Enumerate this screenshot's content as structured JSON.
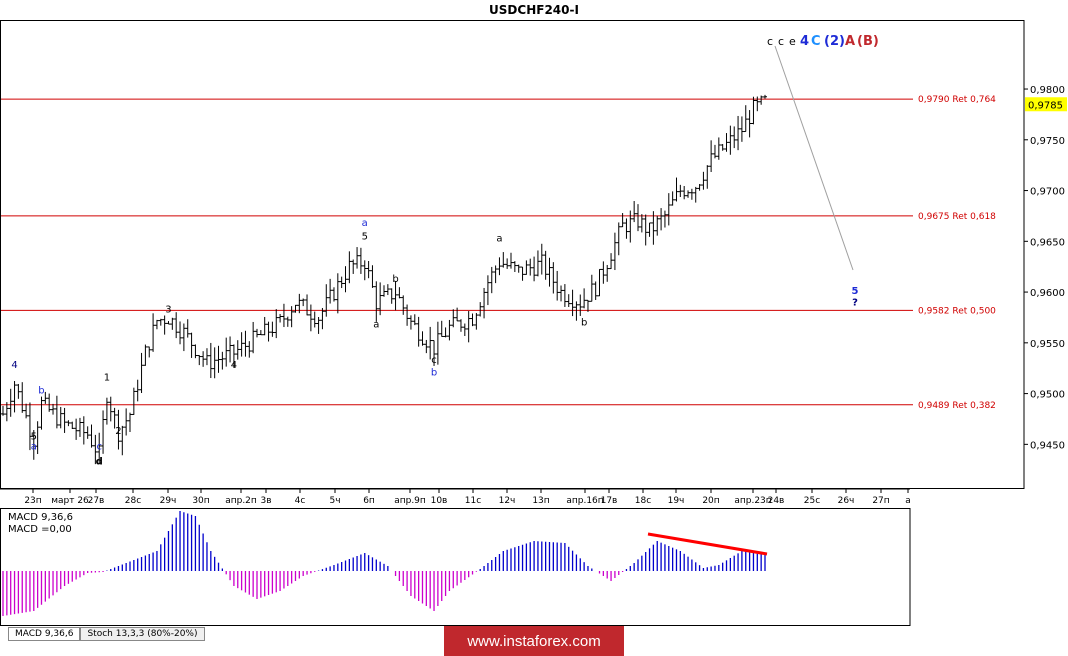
{
  "chart_data": {
    "type": "ohlc",
    "title": "USDCHF240-I",
    "current_price": "0,9785",
    "y_ticks": [
      "0,9800",
      "0,9750",
      "0,9700",
      "0,9650",
      "0,9600",
      "0,9550",
      "0,9500",
      "0,9450"
    ],
    "y_tick_values": [
      0.98,
      0.975,
      0.97,
      0.965,
      0.96,
      0.955,
      0.95,
      0.945
    ],
    "ylim": [
      0.9407,
      0.9868
    ],
    "x_ticks": [
      "23п",
      "март 26",
      "27в",
      "28с",
      "29ч",
      "30п",
      "апр.2п",
      "3в",
      "4с",
      "5ч",
      "6п",
      "апр.9п",
      "10в",
      "11с",
      "12ч",
      "13п",
      "апр.16п",
      "17в",
      "18с",
      "19ч",
      "20п",
      "апр.23п",
      "24в",
      "25с",
      "26ч",
      "27п",
      "а"
    ],
    "levels": [
      {
        "price": 0.979,
        "label": "0,9790 Ret 0,764"
      },
      {
        "price": 0.9675,
        "label": "0,9675 Ret 0,618"
      },
      {
        "price": 0.9582,
        "label": "0,9582 Ret 0,500"
      },
      {
        "price": 0.9489,
        "label": "0,9489 Ret 0,382"
      }
    ],
    "wave_labels": [
      {
        "text": "4",
        "idx": 3,
        "price": 0.9525,
        "color": "#000080"
      },
      {
        "text": "5",
        "idx": 8,
        "price": 0.9455,
        "color": "#000000"
      },
      {
        "text": "a",
        "idx": 8,
        "price": 0.9445,
        "color": "#1e2bd6"
      },
      {
        "text": "b",
        "idx": 10,
        "price": 0.95,
        "color": "#1e2bd6"
      },
      {
        "text": "1",
        "idx": 27,
        "price": 0.9513,
        "color": "#000000"
      },
      {
        "text": "2",
        "idx": 30,
        "price": 0.946,
        "color": "#000000"
      },
      {
        "text": "c",
        "idx": 25,
        "price": 0.9445,
        "color": "#1e2bd6"
      },
      {
        "text": "d",
        "idx": 25,
        "price": 0.943,
        "color": "#000000"
      },
      {
        "text": "3",
        "idx": 43,
        "price": 0.958,
        "color": "#000000"
      },
      {
        "text": "4",
        "idx": 60,
        "price": 0.9525,
        "color": "#000000"
      },
      {
        "text": "5",
        "idx": 94,
        "price": 0.9652,
        "color": "#000000"
      },
      {
        "text": "a",
        "idx": 94,
        "price": 0.9665,
        "color": "#1e2bd6"
      },
      {
        "text": "a",
        "idx": 97,
        "price": 0.9565,
        "color": "#000000"
      },
      {
        "text": "b",
        "idx": 102,
        "price": 0.961,
        "color": "#000000"
      },
      {
        "text": "c",
        "idx": 112,
        "price": 0.953,
        "color": "#000000"
      },
      {
        "text": "b",
        "idx": 112,
        "price": 0.9518,
        "color": "#1e2bd6"
      },
      {
        "text": "a",
        "idx": 129,
        "price": 0.965,
        "color": "#000000"
      },
      {
        "text": "b",
        "idx": 151,
        "price": 0.9567,
        "color": "#000000"
      }
    ],
    "target_labels": [
      {
        "text": "5",
        "price": 0.9598,
        "color": "#1e2bd6"
      },
      {
        "text": "?",
        "price": 0.9587,
        "color": "#000080"
      }
    ],
    "top_labels": [
      {
        "text": "c",
        "color": "#000000"
      },
      {
        "text": "c",
        "color": "#000000"
      },
      {
        "text": "e",
        "color": "#000000"
      },
      {
        "text": "4",
        "color": "#1e2bd6"
      },
      {
        "text": "C",
        "color": "#1e90ff"
      },
      {
        "text": "(2)",
        "color": "#1e2bd6"
      },
      {
        "text": "A",
        "color": "#c0282d"
      },
      {
        "text": "(B)",
        "color": "#c0282d"
      }
    ],
    "indicator": {
      "name": "MACD 9,36,6",
      "value_label": "MACD =0,00",
      "trend_color": "#ff0000"
    },
    "colors": {
      "level": "#d00000",
      "pos_hist": "#0000cc",
      "neg_hist": "#cc00cc",
      "price_box": "#ffff00"
    }
  },
  "tabs": [
    {
      "label": "MACD 9,36,6"
    },
    {
      "label": "Stoch 13,3,3 (80%-20%)"
    }
  ],
  "watermark": "www.instaforex.com"
}
